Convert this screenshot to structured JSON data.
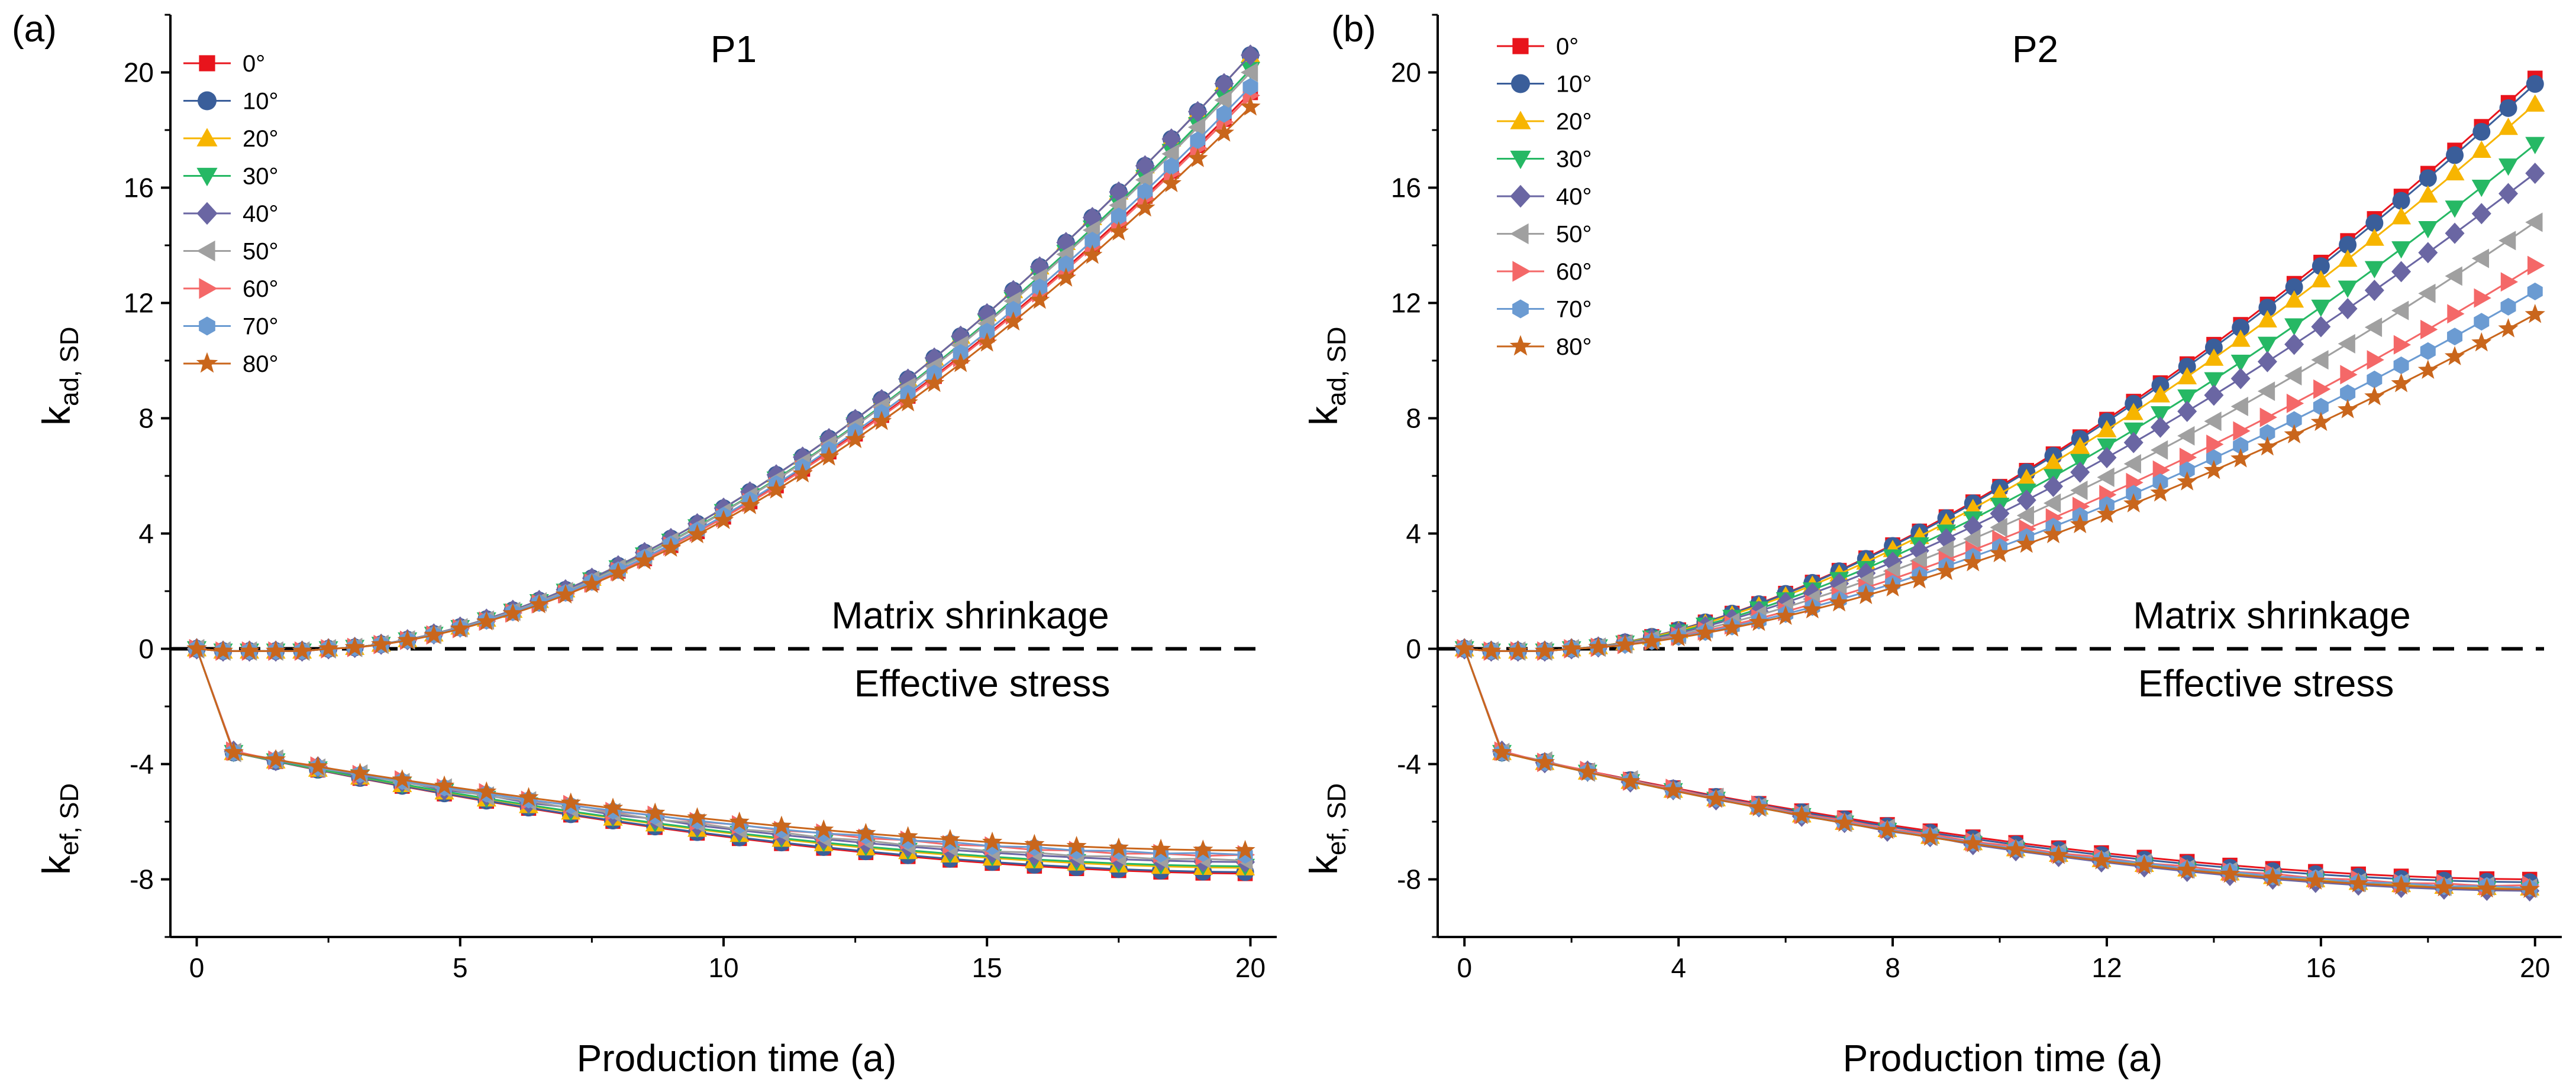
{
  "figure": {
    "xlabel": "Production time (a)",
    "annotation_upper": "Matrix shrinkage",
    "annotation_lower": "Effective stress",
    "ylabel_upper": {
      "main": "k",
      "sub": "ad, SD"
    },
    "ylabel_lower": {
      "main": "k",
      "sub": "ef, SD"
    },
    "series_styles": [
      {
        "name": "0°",
        "color": "#e8141c",
        "marker": "square"
      },
      {
        "name": "10°",
        "color": "#3a5e9a",
        "marker": "circle"
      },
      {
        "name": "20°",
        "color": "#f7b500",
        "marker": "triangle-up"
      },
      {
        "name": "30°",
        "color": "#26b864",
        "marker": "triangle-down"
      },
      {
        "name": "40°",
        "color": "#6a66a3",
        "marker": "diamond"
      },
      {
        "name": "50°",
        "color": "#a0a0a0",
        "marker": "triangle-left"
      },
      {
        "name": "60°",
        "color": "#f46868",
        "marker": "triangle-right"
      },
      {
        "name": "70°",
        "color": "#6b9bd2",
        "marker": "hexagon"
      },
      {
        "name": "80°",
        "color": "#c9661c",
        "marker": "star"
      }
    ]
  },
  "chart_data": [
    {
      "panel_tag": "(a)",
      "title": "P1",
      "type": "line",
      "xlim": [
        -0.5,
        20.5
      ],
      "ylim": [
        -10,
        22
      ],
      "xticks": [
        0,
        5,
        10,
        15,
        20
      ],
      "yticks": [
        -8,
        -4,
        0,
        4,
        8,
        12,
        16,
        20
      ],
      "x_step": 0.5,
      "x_max": 20,
      "upper_onset": 2.5,
      "upper_end": [
        19.3,
        20.6,
        20.6,
        20.1,
        20.6,
        20.0,
        19.2,
        19.5,
        18.8
      ],
      "upper_exponent": 1.7,
      "lower_start": -3.6,
      "lower_end": [
        -7.8,
        -7.75,
        -7.6,
        -7.55,
        -7.4,
        -7.35,
        -7.2,
        -7.15,
        -7.0
      ],
      "labels": [
        "0",
        "5",
        "10",
        "15",
        "20",
        "-8",
        "-4",
        "0",
        "4",
        "8",
        "12",
        "16",
        "20"
      ]
    },
    {
      "panel_tag": "(b)",
      "title": "P2",
      "type": "line",
      "xlim": [
        -0.5,
        20.5
      ],
      "ylim": [
        -10,
        22
      ],
      "xticks": [
        0,
        4,
        8,
        12,
        16,
        20
      ],
      "yticks": [
        -8,
        -4,
        0,
        4,
        8,
        12,
        16,
        20
      ],
      "x_step": 0.5,
      "x_max": 20,
      "upper_onset": 2.0,
      "upper_end": [
        19.8,
        19.6,
        18.9,
        17.5,
        16.5,
        14.8,
        13.3,
        12.4,
        11.6
      ],
      "upper_exponent": 1.55,
      "lower_start": -3.6,
      "lower_end": [
        -8.0,
        -8.1,
        -8.3,
        -8.35,
        -8.4,
        -8.3,
        -8.25,
        -8.3,
        -8.35
      ],
      "labels": [
        "0",
        "4",
        "8",
        "12",
        "16",
        "20",
        "-8",
        "-4",
        "0",
        "4",
        "8",
        "12",
        "16",
        "20"
      ]
    }
  ]
}
